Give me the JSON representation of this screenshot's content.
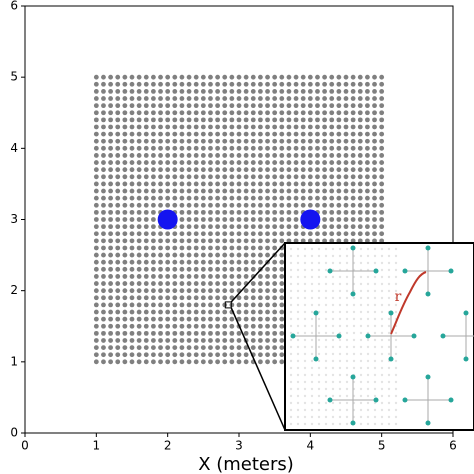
{
  "chart_data": {
    "type": "scatter",
    "xlabel": "X (meters)",
    "xlim": [
      0,
      6
    ],
    "ylim": [
      0,
      6
    ],
    "xticks": [
      0,
      1,
      2,
      3,
      4,
      5,
      6
    ],
    "yticks": [
      0,
      1,
      2,
      3,
      4,
      5,
      6
    ],
    "grid_points": {
      "color": "#808080",
      "x": [
        1,
        1.1,
        1.2,
        1.3,
        1.4,
        1.5,
        1.6,
        1.7,
        1.8,
        1.9,
        2,
        2.1,
        2.2,
        2.3,
        2.4,
        2.5,
        2.6,
        2.7,
        2.8,
        2.9,
        3,
        3.1,
        3.2,
        3.3,
        3.4,
        3.5,
        3.6,
        3.7,
        3.8,
        3.9,
        4,
        4.1,
        4.2,
        4.3,
        4.4,
        4.5,
        4.6,
        4.7,
        4.8,
        4.9,
        5
      ],
      "y": [
        1,
        1.1,
        1.2,
        1.3,
        1.4,
        1.5,
        1.6,
        1.7,
        1.8,
        1.9,
        2,
        2.1,
        2.2,
        2.3,
        2.4,
        2.5,
        2.6,
        2.7,
        2.8,
        2.9,
        3,
        3.1,
        3.2,
        3.3,
        3.4,
        3.5,
        3.6,
        3.7,
        3.8,
        3.9,
        4,
        4.1,
        4.2,
        4.3,
        4.4,
        4.5,
        4.6,
        4.7,
        4.8,
        4.9,
        5
      ]
    },
    "series": [
      {
        "color": "#1414f0",
        "x": [
          2,
          4
        ],
        "y": [
          3,
          3
        ]
      }
    ],
    "zoom": {
      "x": 2.85,
      "y": 1.8,
      "label": "r",
      "label_color": "#c0392b",
      "node_color": "#26a69a"
    }
  }
}
